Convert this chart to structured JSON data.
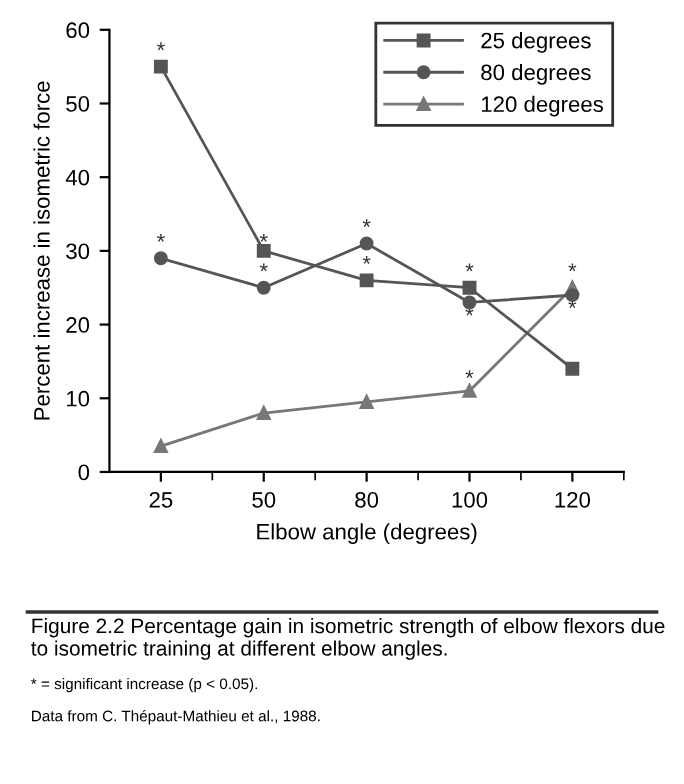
{
  "chart_data": {
    "type": "line",
    "xlabel": "Elbow angle (degrees)",
    "ylabel": "Percent increase in isometric force",
    "categories": [
      "25",
      "50",
      "80",
      "100",
      "120"
    ],
    "ylim": [
      0,
      60
    ],
    "yticks": [
      0,
      10,
      20,
      30,
      40,
      50,
      60
    ],
    "legend": "top right",
    "grid": false,
    "line_style": "solid",
    "series": [
      {
        "name": "25 degrees",
        "color": "#555555",
        "marker": "square",
        "values": [
          55,
          30,
          26,
          25,
          14
        ]
      },
      {
        "name": "80 degrees",
        "color": "#555555",
        "marker": "circle",
        "values": [
          29,
          25,
          31,
          23,
          24
        ]
      },
      {
        "name": "120 degrees",
        "color": "#777777",
        "marker": "triangle",
        "values": [
          3.5,
          8,
          9.5,
          11,
          25
        ]
      }
    ],
    "annotations": [
      {
        "text": "*",
        "x": "25",
        "y": 57
      },
      {
        "text": "*",
        "x": "25",
        "y": 31
      },
      {
        "text": "*",
        "x": "50",
        "y": 31
      },
      {
        "text": "*",
        "x": "50",
        "y": 27
      },
      {
        "text": "*",
        "x": "80",
        "y": 33
      },
      {
        "text": "*",
        "x": "80",
        "y": 28
      },
      {
        "text": "*",
        "x": "100",
        "y": 27
      },
      {
        "text": "*",
        "x": "100",
        "y": 21
      },
      {
        "text": "*",
        "x": "100",
        "y": 12.5
      },
      {
        "text": "*",
        "x": "120",
        "y": 27
      },
      {
        "text": "*",
        "x": "120",
        "y": 22
      },
      "Figure 2.2 Percentage gain in isometric strength of elbow flexors due to isometric training at different elbow angles.",
      "* = significant increase (p < 0.05).",
      "Data from C. Thépaut-Mathieu et al., 1988."
    ]
  }
}
